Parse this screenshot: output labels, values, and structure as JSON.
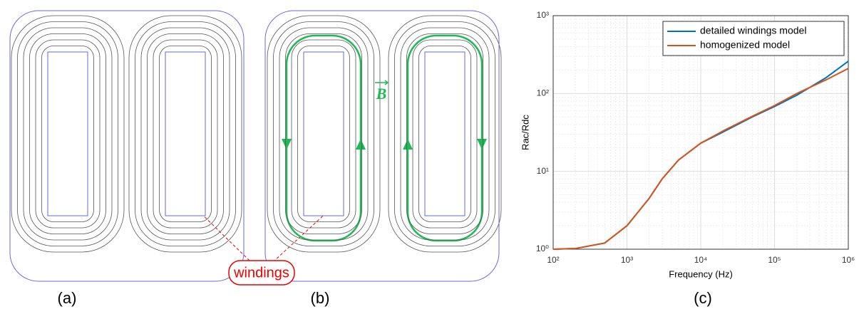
{
  "panels": {
    "a": "(a)",
    "b": "(b)",
    "c": "(c)"
  },
  "windings_label": "windings",
  "field_label": "B",
  "chart_data": {
    "type": "line",
    "xlabel": "Frequency (Hz)",
    "ylabel": "Rac/Rdc",
    "xlog": true,
    "ylog": true,
    "grid": true,
    "legend": "upper right",
    "xlim": [
      100,
      1000000
    ],
    "ylim": [
      1,
      1000
    ],
    "xticks": [
      {
        "value": 100,
        "label": "10²"
      },
      {
        "value": 1000,
        "label": "10³"
      },
      {
        "value": 10000,
        "label": "10⁴"
      },
      {
        "value": 100000,
        "label": "10⁵"
      },
      {
        "value": 1000000,
        "label": "10⁶"
      }
    ],
    "yticks": [
      {
        "value": 1,
        "label": "10⁰"
      },
      {
        "value": 10,
        "label": "10¹"
      },
      {
        "value": 100,
        "label": "10²"
      },
      {
        "value": 1000,
        "label": "10³"
      }
    ],
    "x": [
      100,
      200,
      500,
      1000,
      2000,
      3000,
      5000,
      10000,
      20000,
      50000,
      100000,
      200000,
      500000,
      1000000
    ],
    "series": [
      {
        "name": "detailed windings model",
        "color": "#0072bd",
        "values": [
          1,
          1.02,
          1.2,
          2,
          4.5,
          8,
          14,
          23,
          32,
          50,
          68,
          95,
          160,
          260
        ]
      },
      {
        "name": "homogenized model",
        "color": "#d95319",
        "values": [
          1,
          1.02,
          1.2,
          2,
          4.5,
          8,
          14,
          23,
          33,
          51,
          70,
          100,
          150,
          210
        ]
      }
    ]
  }
}
